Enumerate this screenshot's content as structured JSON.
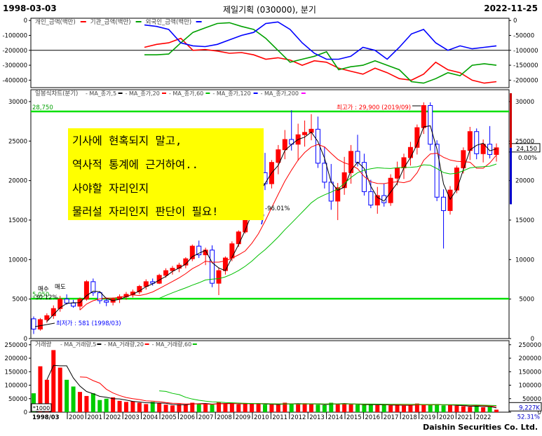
{
  "header": {
    "start_date": "1998-03-03",
    "title": "제일기획 (030000), 분기",
    "end_date": "2022-11-25"
  },
  "note": {
    "lines": [
      "기사에 현혹되지 말고,",
      "역사적 통계에 근거하여..",
      "사야할 자리인지",
      "물러설 자리인지 판단이 필요!"
    ]
  },
  "footer": "Daishin Securities Co. Ltd.",
  "colors": {
    "up": "#ff0000",
    "down": "#0000ff",
    "ma5": "#000000",
    "ma20": "#ff0000",
    "ma60": "#00c000",
    "guide": "#00e000",
    "vol_up": "#ff0000",
    "vol_down": "#00cc00"
  },
  "chart_data": [
    {
      "type": "line",
      "title": "",
      "legend": [
        "개인_금액(백만)",
        "기관_금액(백만)",
        "외국인_금액(백만)"
      ],
      "ylim": [
        -450000,
        15000
      ],
      "y_ticks": [
        0,
        -100000,
        -200000,
        -300000,
        -400000
      ],
      "y_tick_labels_left": [
        "0",
        "-100000",
        "-200000",
        "-300000",
        "-400000"
      ],
      "right_ticks": [
        0,
        -50000,
        -100000,
        -150000,
        -200000
      ],
      "right_tick_labels": [
        "0",
        "-50000",
        "-100000",
        "-150000",
        "-200000"
      ],
      "series": [
        {
          "name": "개인_금액(백만)",
          "color": "#ff0000",
          "values": [
            -180000,
            -160000,
            -150000,
            -120000,
            -200000,
            -195000,
            -205000,
            -220000,
            -215000,
            -230000,
            -260000,
            -250000,
            -265000,
            -300000,
            -270000,
            -280000,
            -320000,
            -340000,
            -360000,
            -320000,
            -350000,
            -390000,
            -400000,
            -360000,
            -280000,
            -330000,
            -350000,
            -400000,
            -420000,
            -410000
          ]
        },
        {
          "name": "외국인_금액(백만)",
          "color": "#00a000",
          "values": [
            -230000,
            -230000,
            -225000,
            -150000,
            -80000,
            -50000,
            -20000,
            -15000,
            -40000,
            -60000,
            -120000,
            -200000,
            -280000,
            -260000,
            -240000,
            -210000,
            -330000,
            -310000,
            -300000,
            -270000,
            -300000,
            -330000,
            -410000,
            -420000,
            -390000,
            -350000,
            -370000,
            -300000,
            -290000,
            -300000
          ]
        },
        {
          "name": "개인_금액(백만)",
          "color": "#0000ff",
          "values": [
            -30000,
            -40000,
            -60000,
            -150000,
            -170000,
            -175000,
            -160000,
            -130000,
            -100000,
            -80000,
            -20000,
            -10000,
            -60000,
            -150000,
            -220000,
            -260000,
            -260000,
            -240000,
            -180000,
            -200000,
            -260000,
            -180000,
            -90000,
            -60000,
            -150000,
            -200000,
            -170000,
            -190000,
            -180000,
            -170000
          ]
        }
      ]
    },
    {
      "type": "candlestick",
      "title": "일봉식차트(분기)",
      "legend": [
        "MA_종가,5",
        "MA_종가,20",
        "MA_종가,60",
        "MA_종가,120",
        "MA_종가,200"
      ],
      "ylim": [
        0,
        31500
      ],
      "y_ticks": [
        0,
        5000,
        10000,
        15000,
        20000,
        25000,
        30000
      ],
      "y_tick_labels": [
        "0",
        "5000",
        "10000",
        "15000",
        "20000",
        "25000",
        "30000"
      ],
      "x_labels": [
        "1998/03",
        "2000",
        "2001",
        "2002",
        "2003",
        "2004",
        "2005",
        "2006",
        "2007",
        "2008",
        "2009",
        "2010",
        "2011",
        "2012",
        "2013",
        "2014",
        "2015",
        "2016",
        "2017",
        "2018",
        "2019",
        "2020",
        "2021",
        "2022"
      ],
      "hlines": [
        {
          "value": 28750,
          "label": "28,750"
        },
        {
          "value": 5050,
          "label": "5,050"
        }
      ],
      "annotations": {
        "high": "최고가 : 29,900 (2019/09)",
        "low": "최저가 : 581 (1998/03)",
        "pct": "-96.01%",
        "pct_left": "-30.12%",
        "small_left": "매수",
        "small_left2": "매도"
      },
      "last_price": "24,150",
      "last_change": "0.00%",
      "ohlc": [
        [
          2500,
          2800,
          581,
          1200
        ],
        [
          1200,
          2600,
          1000,
          2400
        ],
        [
          2400,
          3200,
          2000,
          2900
        ],
        [
          2900,
          4200,
          2500,
          3800
        ],
        [
          3800,
          5400,
          3400,
          5000
        ],
        [
          5000,
          5600,
          4300,
          4500
        ],
        [
          4500,
          4900,
          3900,
          4100
        ],
        [
          4100,
          5200,
          3600,
          5000
        ],
        [
          5000,
          7400,
          4800,
          7200
        ],
        [
          7200,
          7600,
          5400,
          5800
        ],
        [
          5800,
          6000,
          4400,
          4800
        ],
        [
          4800,
          5200,
          4100,
          4600
        ],
        [
          4600,
          5200,
          4200,
          5000
        ],
        [
          5000,
          5600,
          4500,
          5300
        ],
        [
          5300,
          5900,
          4900,
          5600
        ],
        [
          5600,
          6200,
          5200,
          5900
        ],
        [
          5900,
          6800,
          5600,
          6600
        ],
        [
          6600,
          7500,
          6200,
          7200
        ],
        [
          7200,
          7600,
          6700,
          7000
        ],
        [
          7000,
          8200,
          6900,
          8000
        ],
        [
          8000,
          8900,
          7700,
          8600
        ],
        [
          8600,
          9200,
          8100,
          8900
        ],
        [
          8900,
          9600,
          8400,
          9300
        ],
        [
          9300,
          10300,
          8900,
          10100
        ],
        [
          10100,
          11900,
          9800,
          11700
        ],
        [
          11700,
          12400,
          10200,
          10600
        ],
        [
          10600,
          11500,
          9300,
          11200
        ],
        [
          11200,
          11800,
          6500,
          7000
        ],
        [
          7000,
          9000,
          5500,
          8600
        ],
        [
          8600,
          10400,
          8100,
          10200
        ],
        [
          10200,
          12300,
          9800,
          12000
        ],
        [
          12000,
          13700,
          11600,
          13500
        ],
        [
          13500,
          15900,
          13300,
          15600
        ],
        [
          15600,
          18600,
          15200,
          18300
        ],
        [
          18300,
          21400,
          17900,
          21000
        ],
        [
          21000,
          23500,
          18800,
          19600
        ],
        [
          19600,
          22600,
          19000,
          22300
        ],
        [
          22300,
          24500,
          20800,
          23900
        ],
        [
          23900,
          26400,
          22700,
          25200
        ],
        [
          25200,
          28900,
          23800,
          24600
        ],
        [
          24600,
          27200,
          22500,
          25800
        ],
        [
          25800,
          27600,
          24300,
          26100
        ],
        [
          26100,
          28400,
          25100,
          26500
        ],
        [
          26500,
          28100,
          21600,
          22200
        ],
        [
          22200,
          24300,
          19000,
          19800
        ],
        [
          19800,
          22100,
          16300,
          17400
        ],
        [
          17400,
          19700,
          15000,
          19100
        ],
        [
          19100,
          23000,
          18200,
          21000
        ],
        [
          21000,
          24500,
          19600,
          23700
        ],
        [
          23700,
          25800,
          21800,
          22300
        ],
        [
          22300,
          23400,
          18100,
          18600
        ],
        [
          18600,
          20100,
          16500,
          16900
        ],
        [
          16900,
          19200,
          15800,
          18100
        ],
        [
          18100,
          19600,
          16700,
          17200
        ],
        [
          17200,
          20800,
          16800,
          20300
        ],
        [
          20300,
          22400,
          19400,
          21600
        ],
        [
          21600,
          23400,
          20200,
          22900
        ],
        [
          22900,
          24900,
          21900,
          24200
        ],
        [
          24200,
          27100,
          23300,
          26700
        ],
        [
          26700,
          29900,
          25900,
          29500
        ],
        [
          29500,
          29900,
          23800,
          24600
        ],
        [
          24600,
          25100,
          17400,
          17900
        ],
        [
          17900,
          18900,
          11400,
          16200
        ],
        [
          16200,
          19300,
          15700,
          18800
        ],
        [
          18800,
          21900,
          18400,
          21600
        ],
        [
          21600,
          24200,
          20900,
          23800
        ],
        [
          23800,
          26800,
          22600,
          26200
        ],
        [
          26200,
          26600,
          22700,
          23400
        ],
        [
          23400,
          25200,
          22300,
          24600
        ],
        [
          24600,
          26900,
          22800,
          23300
        ],
        [
          23300,
          24700,
          22400,
          24150
        ]
      ]
    },
    {
      "type": "bar",
      "title": "거래량",
      "legend": [
        "MA_거래량,5",
        "MA_거래량,20",
        "MA_거래량,60"
      ],
      "ylim": [
        0,
        265000
      ],
      "y_ticks": [
        0,
        50000,
        100000,
        150000,
        200000,
        250000
      ],
      "y_tick_labels": [
        "0",
        "50000",
        "100000",
        "150000",
        "200000",
        "250000"
      ],
      "unit": "*1000",
      "last_volume": "9,227K",
      "last_pct": "52.31%",
      "values": [
        70000,
        170000,
        120000,
        230000,
        165000,
        120000,
        95000,
        75000,
        60000,
        70000,
        45000,
        50000,
        55000,
        42000,
        38000,
        40000,
        35000,
        30000,
        38000,
        33000,
        28000,
        25000,
        30000,
        27000,
        35000,
        32000,
        30000,
        28000,
        36000,
        33000,
        31000,
        29000,
        34000,
        30000,
        32000,
        28000,
        30000,
        27000,
        35000,
        31000,
        29000,
        33000,
        30000,
        28000,
        26000,
        35000,
        30000,
        32000,
        29000,
        28000,
        27000,
        30000,
        26000,
        28000,
        25000,
        27000,
        24000,
        26000,
        32000,
        28000,
        26000,
        30000,
        25000,
        27000,
        24000,
        22000,
        20000,
        25000,
        18000,
        20000,
        9227
      ]
    }
  ]
}
